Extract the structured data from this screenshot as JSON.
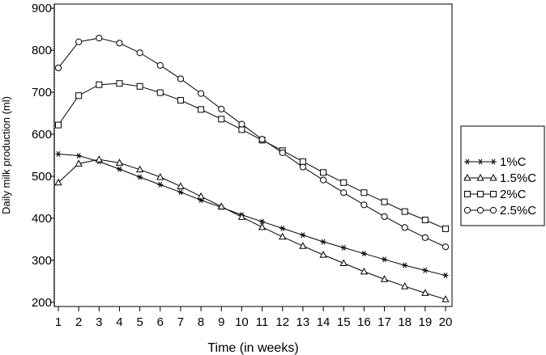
{
  "chart_data": {
    "type": "line",
    "title": "",
    "xlabel": "Time (in weeks)",
    "ylabel": "Daily milk production (ml)",
    "xlim": [
      1,
      20
    ],
    "ylim": [
      190,
      910
    ],
    "x_ticks": [
      1,
      2,
      3,
      4,
      5,
      6,
      7,
      8,
      9,
      10,
      11,
      12,
      13,
      14,
      15,
      16,
      17,
      18,
      19,
      20
    ],
    "y_ticks": [
      200,
      300,
      400,
      500,
      600,
      700,
      800,
      900
    ],
    "grid": false,
    "legend_position": "right",
    "x": [
      1,
      2,
      3,
      4,
      5,
      6,
      7,
      8,
      9,
      10,
      11,
      12,
      13,
      14,
      15,
      16,
      17,
      18,
      19,
      20
    ],
    "series": [
      {
        "name": "1%C",
        "marker": "asterisk",
        "values": [
          553,
          549,
          535,
          517,
          498,
          480,
          462,
          443,
          426,
          408,
          392,
          376,
          360,
          344,
          330,
          316,
          302,
          288,
          276,
          264
        ]
      },
      {
        "name": "1.5%C",
        "marker": "triangle",
        "values": [
          485,
          530,
          540,
          532,
          516,
          498,
          476,
          452,
          428,
          403,
          379,
          356,
          334,
          313,
          293,
          273,
          255,
          238,
          222,
          207
        ]
      },
      {
        "name": "2%C",
        "marker": "square",
        "values": [
          622,
          692,
          718,
          721,
          714,
          699,
          681,
          659,
          636,
          611,
          586,
          561,
          535,
          509,
          485,
          461,
          439,
          416,
          396,
          375
        ]
      },
      {
        "name": "2.5%C",
        "marker": "circle",
        "values": [
          758,
          820,
          829,
          817,
          794,
          764,
          732,
          697,
          660,
          624,
          588,
          556,
          522,
          491,
          461,
          432,
          404,
          378,
          354,
          332
        ]
      }
    ]
  }
}
